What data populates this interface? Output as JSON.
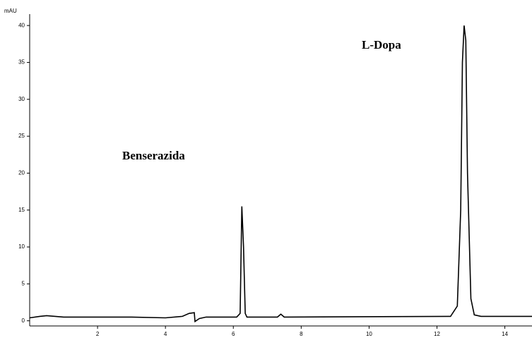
{
  "chart_data": {
    "type": "line",
    "y_label": "mAU",
    "annotations": [
      "Benserazida",
      "L-Dopa"
    ],
    "x": [
      0,
      0.3,
      0.5,
      1,
      2,
      3,
      4,
      4.5,
      4.7,
      4.85,
      4.87,
      5.0,
      5.2,
      6.1,
      6.2,
      6.25,
      6.3,
      6.35,
      6.4,
      7.3,
      7.4,
      7.5,
      12.4,
      12.6,
      12.7,
      12.75,
      12.8,
      12.85,
      12.9,
      13.0,
      13.1,
      13.3,
      14.8
    ],
    "values": [
      0.4,
      0.6,
      0.7,
      0.5,
      0.5,
      0.5,
      0.4,
      0.6,
      1.0,
      1.1,
      -0.1,
      0.3,
      0.5,
      0.5,
      1,
      15.5,
      10,
      1,
      0.5,
      0.5,
      0.9,
      0.5,
      0.6,
      2,
      15,
      35,
      40,
      38,
      20,
      3,
      0.8,
      0.6,
      0.6
    ],
    "color": "#000000",
    "xlim": [
      0,
      14.8
    ],
    "xticks": [
      2,
      4,
      6,
      8,
      10,
      12,
      14
    ],
    "ylim": [
      -0.7,
      42.5
    ],
    "yticks": [
      0,
      5,
      10,
      15,
      20,
      25,
      30,
      35,
      40
    ]
  }
}
